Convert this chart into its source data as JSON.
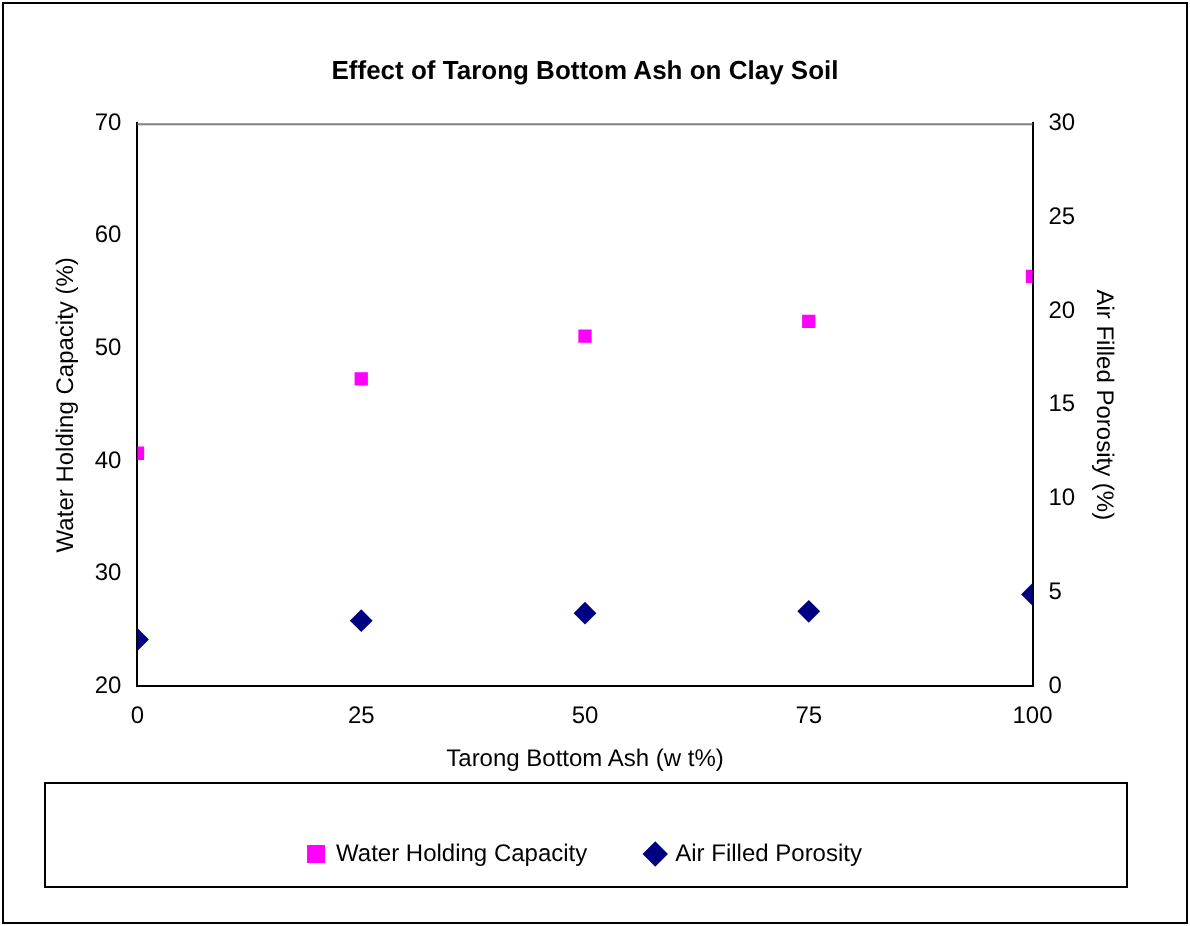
{
  "chart_data": {
    "type": "scatter",
    "title": "Effect of Tarong Bottom Ash on Clay Soil",
    "xlabel": "Tarong Bottom Ash (w t%)",
    "ylabel": "Water Holding Capacity (%)",
    "y2label": "Air Filled Porosity (%)",
    "x": [
      0,
      25,
      50,
      75,
      100
    ],
    "series": [
      {
        "name": "Water Holding Capacity",
        "color": "#ff00ff",
        "marker": "square",
        "values": [
          40.7,
          47.3,
          51.1,
          52.4,
          56.4
        ]
      },
      {
        "name": "Air Filled Porosity",
        "color": "#000080",
        "marker": "diamond",
        "axis": "y2",
        "values": [
          2.5,
          3.5,
          3.9,
          4.0,
          4.9
        ]
      }
    ],
    "xlim": [
      0,
      100
    ],
    "xticks": [
      0,
      25,
      50,
      75,
      100
    ],
    "ylim": [
      20,
      70
    ],
    "yticks": [
      20,
      30,
      40,
      50,
      60,
      70
    ],
    "y2lim": [
      0,
      30
    ],
    "y2ticks": [
      0,
      5,
      10,
      15,
      20,
      25,
      30
    ],
    "grid": false,
    "legend": "bottom"
  }
}
